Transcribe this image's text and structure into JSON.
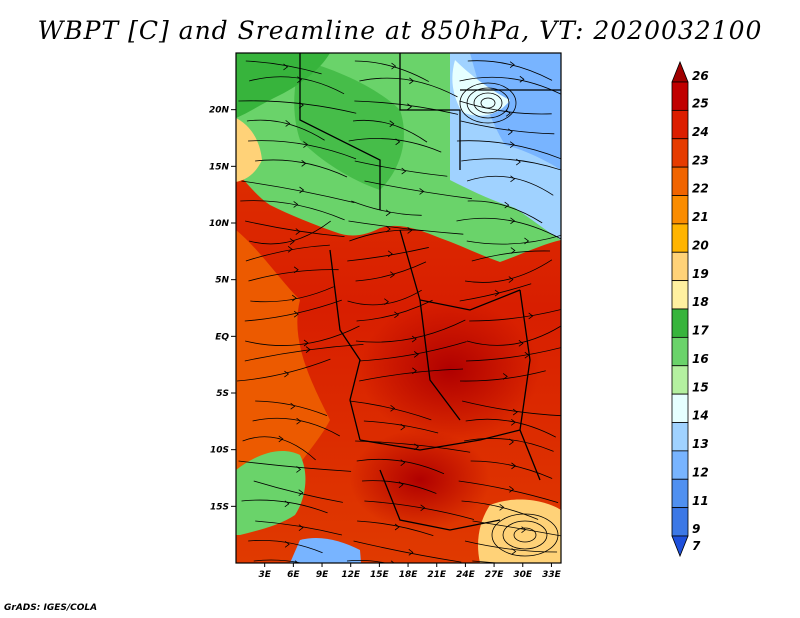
{
  "title": "WBPT [C] and Sreamline at 850hPa, VT: 2020032100",
  "credit": "GrADS: IGES/COLA",
  "map": {
    "lat_labels": [
      "20N",
      "15N",
      "10N",
      "5N",
      "EQ",
      "5S",
      "10S",
      "15S"
    ],
    "lat_values": [
      20,
      15,
      10,
      5,
      0,
      -5,
      -10,
      -15
    ],
    "lon_labels": [
      "3E",
      "6E",
      "9E",
      "12E",
      "15E",
      "18E",
      "21E",
      "24E",
      "27E",
      "30E",
      "33E"
    ],
    "lon_values": [
      3,
      6,
      9,
      12,
      15,
      18,
      21,
      24,
      27,
      30,
      33
    ],
    "lat_range": [
      -20,
      25
    ],
    "lon_range": [
      0,
      34
    ]
  },
  "colorbar": {
    "labels": [
      "26",
      "25",
      "24",
      "23",
      "22",
      "21",
      "20",
      "19",
      "18",
      "17",
      "16",
      "15",
      "14",
      "13",
      "12",
      "11",
      "9",
      "7"
    ],
    "colors": [
      "#a00000",
      "#c00000",
      "#dc1e00",
      "#e63c00",
      "#f06400",
      "#fa8c00",
      "#ffb400",
      "#ffd278",
      "#fff0a0",
      "#37b43c",
      "#6ad36a",
      "#b4f0a0",
      "#e6ffff",
      "#a0d2ff",
      "#78b4ff",
      "#5090f0",
      "#3c78e6",
      "#1e50dc"
    ]
  }
}
